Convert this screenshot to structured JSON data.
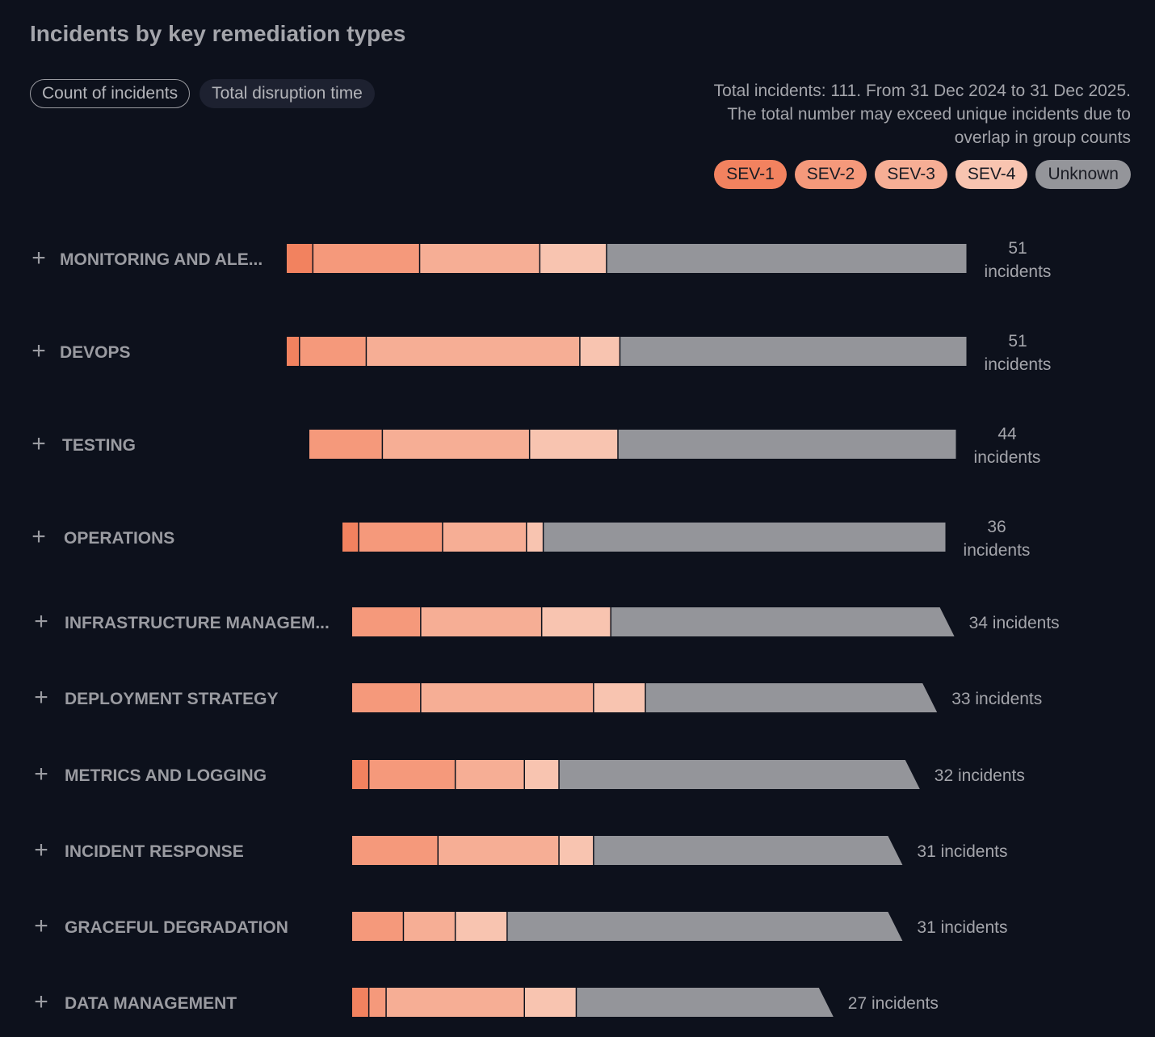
{
  "title": "Incidents by key remediation types",
  "toggles": [
    {
      "label": "Count of incidents",
      "active": true
    },
    {
      "label": "Total disruption time",
      "active": false
    }
  ],
  "note": "Total incidents: 111. From 31 Dec 2024 to 31 Dec 2025. The total number may exceed unique incidents due to overlap in group counts",
  "legend": [
    {
      "label": "SEV-1",
      "color": "#f2825f"
    },
    {
      "label": "SEV-2",
      "color": "#f5997b"
    },
    {
      "label": "SEV-3",
      "color": "#f6ae95"
    },
    {
      "label": "SEV-4",
      "color": "#f8c4b0"
    },
    {
      "label": "Unknown",
      "color": "#94959a"
    }
  ],
  "chart_data": {
    "type": "bar",
    "orientation": "horizontal",
    "stacked": true,
    "categories": [
      "MONITORING AND ALE...",
      "DEVOPS",
      "TESTING",
      "OPERATIONS",
      "INFRASTRUCTURE MANAGEM...",
      "DEPLOYMENT STRATEGY",
      "METRICS AND LOGGING",
      "INCIDENT RESPONSE",
      "GRACEFUL DEGRADATION",
      "DATA MANAGEMENT"
    ],
    "totals": [
      51,
      51,
      44,
      36,
      34,
      33,
      32,
      31,
      31,
      27
    ],
    "total_labels": [
      "51 incidents",
      "51 incidents",
      "44 incidents",
      "36 incidents",
      "34 incidents",
      "33 incidents",
      "32 incidents",
      "31 incidents",
      "31 incidents",
      "27 incidents"
    ],
    "series": [
      {
        "name": "SEV-1",
        "values": [
          2,
          1,
          0,
          1,
          0,
          0,
          1,
          0,
          0,
          1
        ]
      },
      {
        "name": "SEV-2",
        "values": [
          8,
          5,
          5,
          5,
          4,
          4,
          5,
          5,
          3,
          1
        ]
      },
      {
        "name": "SEV-3",
        "values": [
          9,
          16,
          10,
          5,
          7,
          10,
          4,
          7,
          3,
          8
        ]
      },
      {
        "name": "SEV-4",
        "values": [
          5,
          3,
          6,
          1,
          4,
          3,
          2,
          2,
          3,
          3
        ]
      },
      {
        "name": "Unknown",
        "values": [
          27,
          26,
          23,
          24,
          19,
          16,
          20,
          17,
          22,
          14
        ]
      }
    ],
    "legend_position": "top-right",
    "grid": false
  }
}
